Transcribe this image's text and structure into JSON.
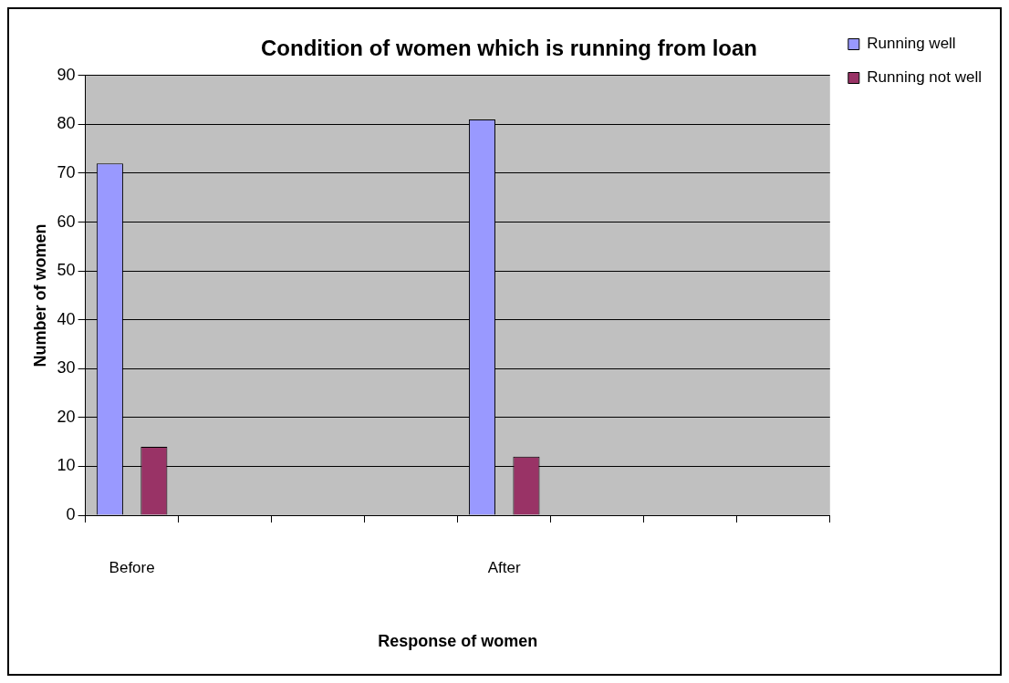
{
  "chart_data": {
    "type": "bar",
    "title": "Condition of women which is running from loan",
    "xlabel": "Response of women",
    "ylabel": "Number of women",
    "categories": [
      "Before",
      null,
      null,
      null,
      "After",
      null,
      null,
      null
    ],
    "series": [
      {
        "name": "Running well",
        "color": "#9999ff",
        "values": [
          72,
          null,
          null,
          null,
          81,
          null,
          null,
          null
        ]
      },
      {
        "name": "Running not well",
        "color": "#993366",
        "values": [
          14,
          null,
          null,
          null,
          12,
          null,
          null,
          null
        ]
      }
    ],
    "ylim": [
      0,
      90
    ],
    "yticks": [
      0,
      10,
      20,
      30,
      40,
      50,
      60,
      70,
      80,
      90
    ],
    "grid": "y",
    "legend": "right"
  }
}
